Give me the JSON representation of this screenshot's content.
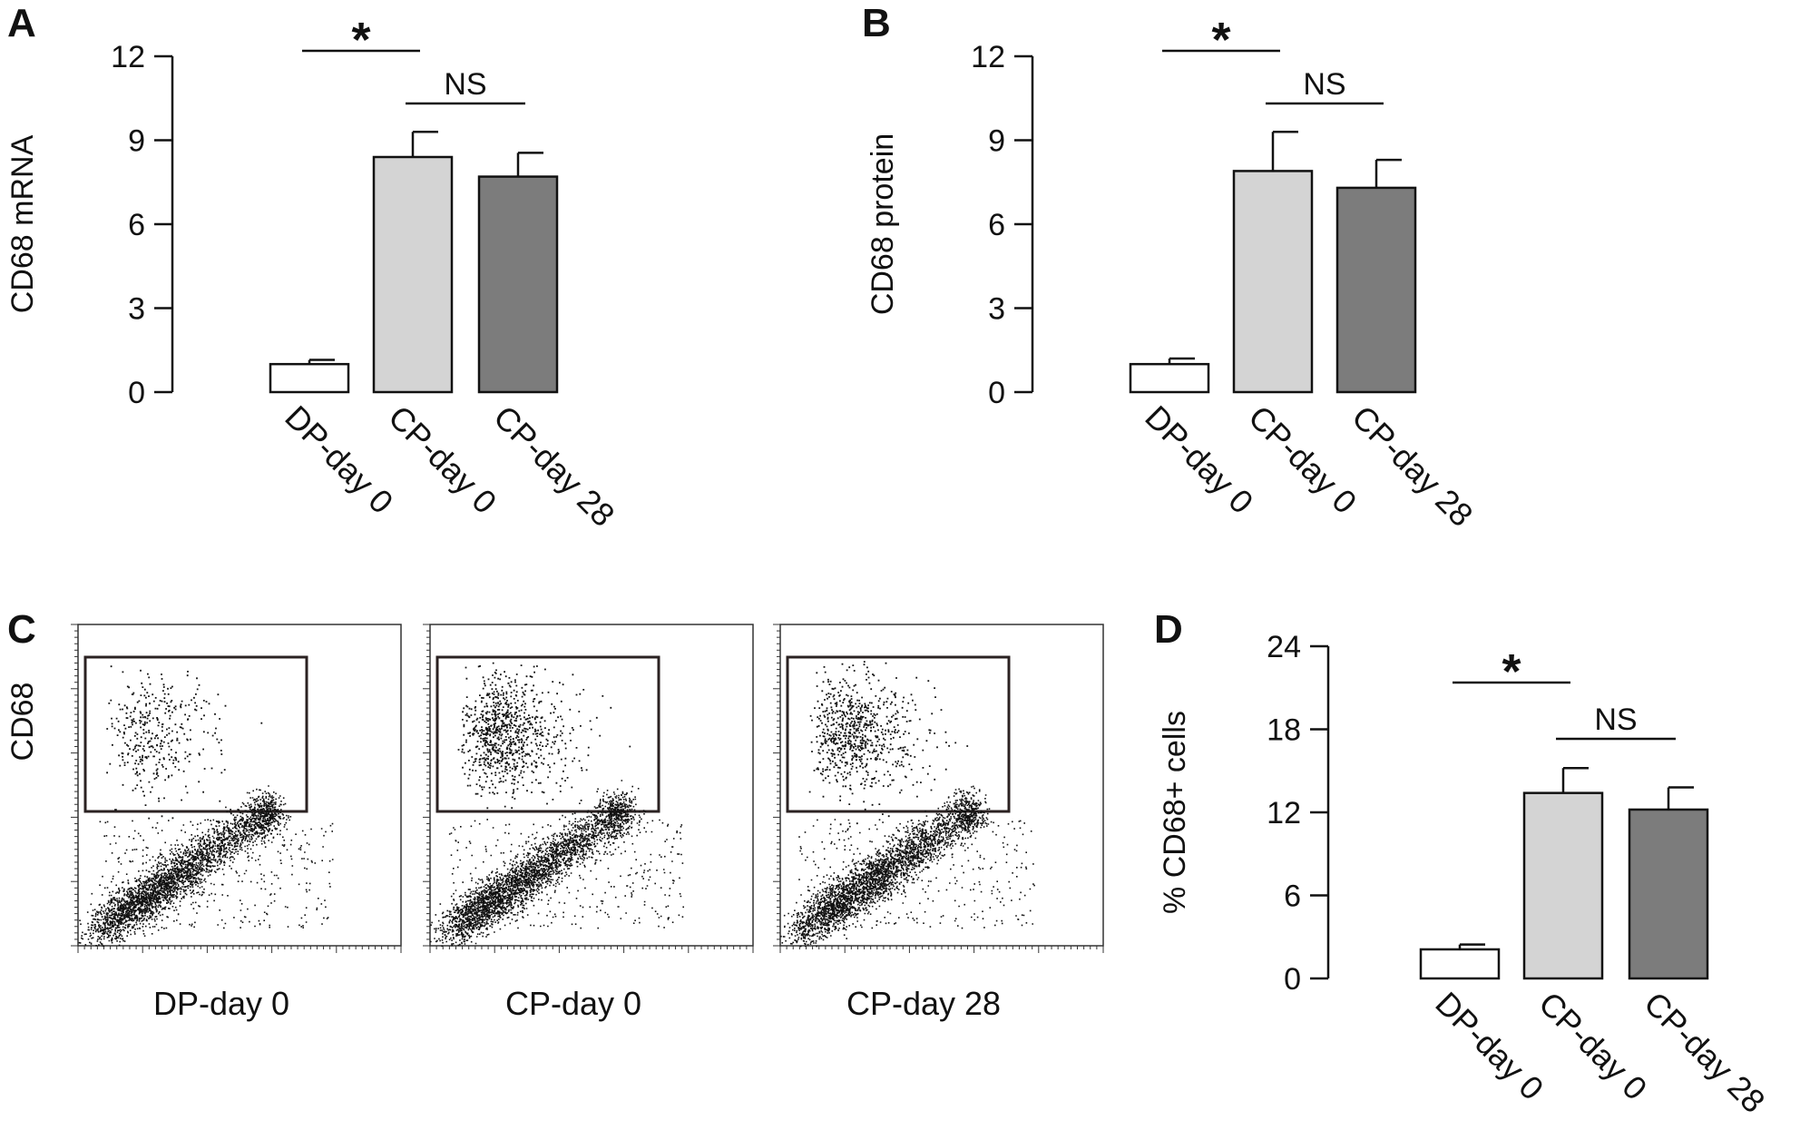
{
  "figure": {
    "panel_letters": [
      "A",
      "B",
      "C",
      "D"
    ],
    "colors": {
      "DP-day 0": "#ffffff",
      "CP-day 0": "#d4d4d4",
      "CP-day 28": "#7c7c7c"
    }
  },
  "chart_data": [
    {
      "id": "A",
      "type": "bar",
      "title": "",
      "ylabel": "CD68 mRNA",
      "categories": [
        "DP-day 0",
        "CP-day 0",
        "CP-day 28"
      ],
      "values": [
        1.0,
        8.4,
        7.7
      ],
      "errors": [
        0.15,
        0.9,
        0.85
      ],
      "ylim": [
        0,
        12
      ],
      "yticks": [
        "0",
        "3",
        "6",
        "9",
        "12"
      ],
      "significance": [
        {
          "from": 0,
          "to": 1,
          "label": "*"
        },
        {
          "from": 1,
          "to": 2,
          "label": "NS"
        }
      ]
    },
    {
      "id": "B",
      "type": "bar",
      "title": "",
      "ylabel": "CD68 protein",
      "categories": [
        "DP-day 0",
        "CP-day 0",
        "CP-day 28"
      ],
      "values": [
        1.0,
        7.9,
        7.3
      ],
      "errors": [
        0.2,
        1.4,
        1.0
      ],
      "ylim": [
        0,
        12
      ],
      "yticks": [
        "0",
        "3",
        "6",
        "9",
        "12"
      ],
      "significance": [
        {
          "from": 0,
          "to": 1,
          "label": "*"
        },
        {
          "from": 1,
          "to": 2,
          "label": "NS"
        }
      ]
    },
    {
      "id": "C",
      "type": "scatter",
      "ylabel": "CD68",
      "panels": [
        "DP-day 0",
        "CP-day 0",
        "CP-day 28"
      ]
    },
    {
      "id": "D",
      "type": "bar",
      "title": "",
      "ylabel": "% CD68+ cells",
      "categories": [
        "DP-day 0",
        "CP-day 0",
        "CP-day 28"
      ],
      "values": [
        2.1,
        13.4,
        12.2
      ],
      "errors": [
        0.35,
        1.8,
        1.6
      ],
      "ylim": [
        0,
        24
      ],
      "yticks": [
        "0",
        "6",
        "12",
        "18",
        "24"
      ],
      "significance": [
        {
          "from": 0,
          "to": 1,
          "label": "*"
        },
        {
          "from": 1,
          "to": 2,
          "label": "NS"
        }
      ]
    }
  ]
}
